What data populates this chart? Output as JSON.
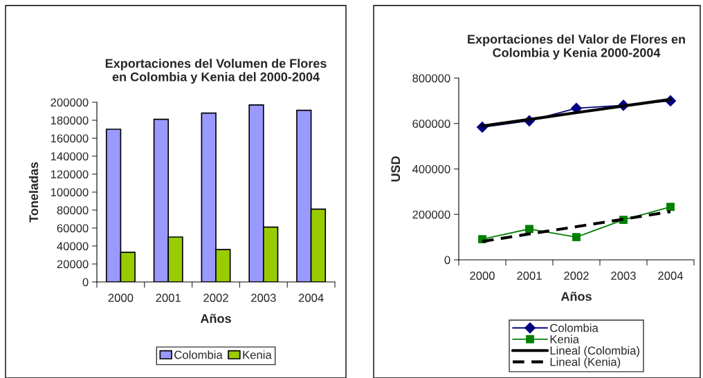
{
  "chart_data": [
    {
      "type": "bar",
      "title": "Exportaciones del Volumen de Flores\nen Colombia y Kenia del 2000-2004",
      "xlabel": "Años",
      "ylabel": "Toneladas",
      "categories": [
        "2000",
        "2001",
        "2002",
        "2003",
        "2004"
      ],
      "series": [
        {
          "name": "Colombia",
          "color": "#9999ff",
          "values": [
            170000,
            181000,
            188000,
            197000,
            191000
          ]
        },
        {
          "name": "Kenia",
          "color": "#99cc00",
          "values": [
            33000,
            50000,
            36000,
            61000,
            81000
          ]
        }
      ],
      "ylim": [
        0,
        200000
      ],
      "yticks": [
        0,
        20000,
        40000,
        60000,
        80000,
        100000,
        120000,
        140000,
        160000,
        180000,
        200000
      ],
      "grid": false,
      "legend": "bottom"
    },
    {
      "type": "line",
      "title": "Exportaciones del Valor de Flores en\nColombia y Kenia 2000-2004",
      "xlabel": "Años",
      "ylabel": "USD",
      "categories": [
        "2000",
        "2001",
        "2002",
        "2003",
        "2004"
      ],
      "series": [
        {
          "name": "Colombia",
          "color": "#000080",
          "marker": "diamond",
          "line_style": "solid",
          "values": [
            584000,
            612000,
            667000,
            680000,
            700000
          ]
        },
        {
          "name": "Kenia",
          "color": "#008000",
          "marker": "square",
          "line_style": "solid",
          "values": [
            91000,
            136000,
            100000,
            176000,
            233000
          ]
        },
        {
          "name": "Lineal (Colombia)",
          "color": "#000000",
          "marker": "none",
          "line_style": "solid",
          "values": [
            589000,
            618000,
            648000,
            677000,
            706000
          ]
        },
        {
          "name": "Lineal (Kenia)",
          "color": "#000000",
          "marker": "none",
          "line_style": "dashed",
          "values": [
            81000,
            114000,
            146000,
            179000,
            212000
          ]
        }
      ],
      "ylim": [
        0,
        800000
      ],
      "yticks": [
        0,
        200000,
        400000,
        600000,
        800000
      ],
      "grid": false,
      "legend": "bottom"
    }
  ]
}
